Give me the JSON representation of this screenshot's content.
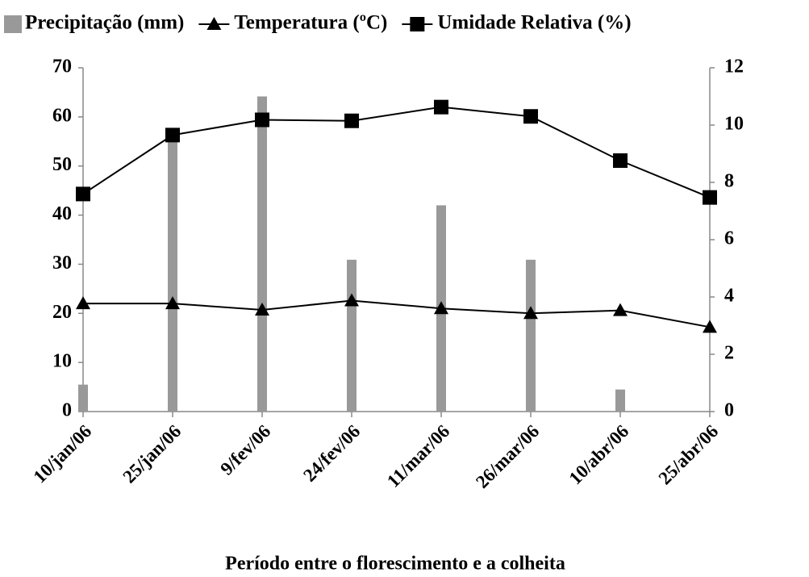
{
  "chart_data": {
    "type": "bar-line",
    "x_label": "Período entre o florescimento e a colheita",
    "categories": [
      "10/jan/06",
      "25/jan/06",
      "9/fev/06",
      "24/fev/06",
      "11/mar/06",
      "26/mar/06",
      "10/abr/06",
      "25/abr/06"
    ],
    "series": [
      {
        "name": "Precipitação (mm)",
        "type": "bar",
        "axis": "y2",
        "color": "#999999",
        "values": [
          0.94,
          9.6,
          11,
          5.3,
          7.2,
          5.3,
          0.77,
          0
        ]
      },
      {
        "name": "Temperatura (ºC)",
        "type": "line",
        "marker": "triangle",
        "color": "#000000",
        "values": [
          22,
          22,
          20.7,
          22.6,
          21,
          20,
          20.6,
          17.2
        ]
      },
      {
        "name": "Umidade Relativa (%)",
        "type": "line",
        "marker": "square",
        "color": "#000000",
        "values": [
          44.3,
          56.3,
          59.4,
          59.2,
          62,
          60.1,
          51.1,
          43.6
        ]
      }
    ],
    "ylim": [
      0,
      70
    ],
    "yticks": [
      0,
      10,
      20,
      30,
      40,
      50,
      60,
      70
    ],
    "y2lim": [
      0,
      12
    ],
    "y2ticks": [
      0,
      2,
      4,
      6,
      8,
      10,
      12
    ]
  }
}
